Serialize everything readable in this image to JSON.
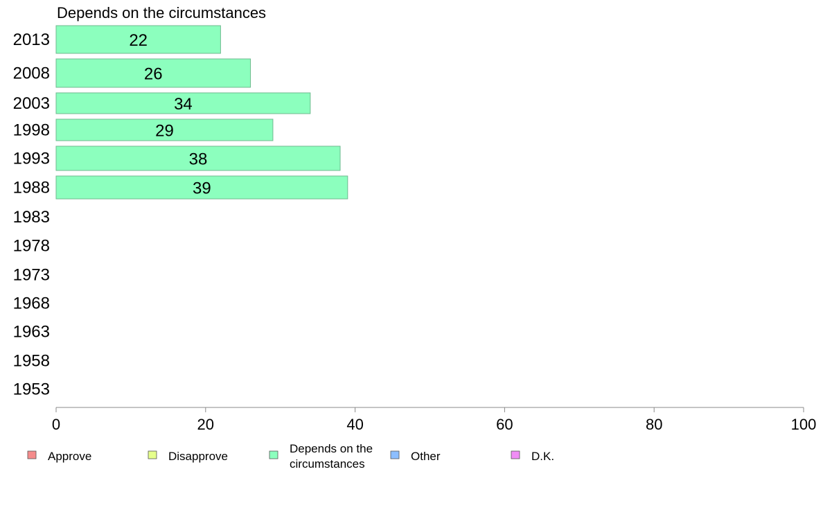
{
  "chart_data": {
    "type": "bar",
    "orientation": "horizontal",
    "title": "Depends on the circumstances",
    "categories": [
      "2013",
      "2008",
      "2003",
      "1998",
      "1993",
      "1988",
      "1983",
      "1978",
      "1973",
      "1968",
      "1963",
      "1958",
      "1953"
    ],
    "series": [
      {
        "name": "Depends on the circumstances",
        "color": "#8cffbe",
        "values": [
          22,
          26,
          34,
          29,
          38,
          39,
          null,
          null,
          null,
          null,
          null,
          null,
          null
        ]
      }
    ],
    "xlim": [
      0,
      100
    ],
    "xticks": [
      "0",
      "20",
      "40",
      "60",
      "80",
      "100"
    ],
    "grid": false,
    "legend_position": "bottom",
    "legend": [
      {
        "label": "Approve",
        "color": "#f58c8c"
      },
      {
        "label": "Disapprove",
        "color": "#e6ff8c"
      },
      {
        "label": "Depends on the circumstances",
        "lines": [
          "Depends on the",
          "circumstances"
        ],
        "color": "#8cffbe"
      },
      {
        "label": "Other",
        "color": "#8cbeff"
      },
      {
        "label": "D.K.",
        "color": "#f08cf5"
      }
    ]
  }
}
